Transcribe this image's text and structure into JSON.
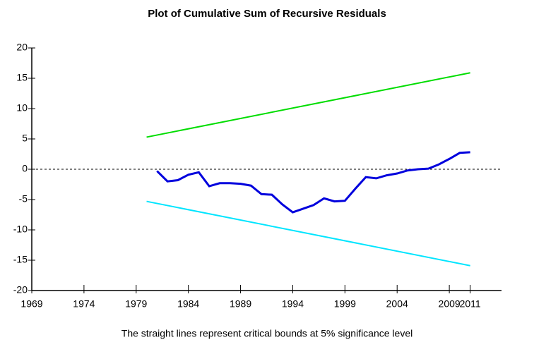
{
  "chart_data": {
    "type": "line",
    "title": "Plot of Cumulative Sum of Recursive Residuals",
    "caption": "The straight lines represent critical bounds at 5% significance level",
    "series": [
      {
        "color": "#0000dd",
        "x": [
          1981,
          1982,
          1983,
          1984,
          1985,
          1986,
          1987,
          1988,
          1989,
          1990,
          1991,
          1992,
          1993,
          1994,
          1995,
          1996,
          1997,
          1998,
          1999,
          2000,
          2001,
          2002,
          2003,
          2004,
          2005,
          2006,
          2007,
          2008,
          2009,
          2010,
          2011
        ],
        "values": [
          -0.3,
          -2.0,
          -1.8,
          -0.9,
          -0.5,
          -2.8,
          -2.3,
          -2.3,
          -2.4,
          -2.7,
          -4.1,
          -4.2,
          -5.8,
          -7.1,
          -6.5,
          -5.9,
          -4.8,
          -5.3,
          -5.2,
          -3.2,
          -1.3,
          -1.5,
          -1.0,
          -0.7,
          -0.2,
          0.0,
          0.1,
          0.8,
          1.7,
          2.7,
          2.8
        ]
      },
      {
        "color": "#00dd00",
        "x": [
          1980,
          2011
        ],
        "values": [
          5.3,
          15.9
        ]
      },
      {
        "color": "#00e5ff",
        "x": [
          1980,
          2011
        ],
        "values": [
          -5.3,
          -15.9
        ]
      }
    ],
    "xlim": [
      1969,
      2014
    ],
    "xticks": [
      1969,
      1974,
      1979,
      1984,
      1989,
      1994,
      1999,
      2004,
      2009,
      2011
    ],
    "ylim": [
      -20,
      20
    ],
    "yticks": [
      -20,
      -15,
      -10,
      -5,
      0,
      5,
      10,
      15,
      20
    ],
    "zero_line": true
  }
}
